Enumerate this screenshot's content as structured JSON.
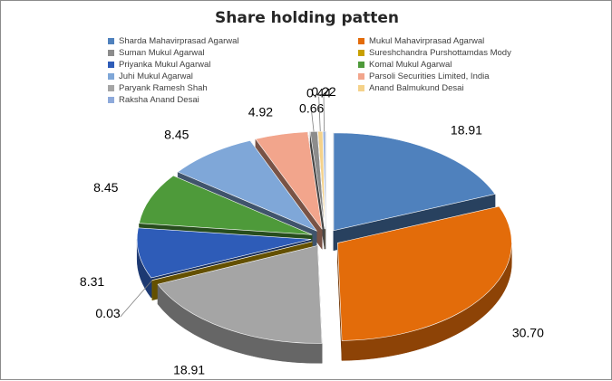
{
  "chart_data": {
    "type": "pie",
    "title": "Share holding patten",
    "legend_position": "top",
    "three_d": true,
    "exploded": true,
    "slices": [
      {
        "label": "Sharda Mahavirprasad Agarwal",
        "value": 18.91,
        "value_label": "18.91",
        "color": "#4f81bd"
      },
      {
        "label": "Mukul Mahavirprasad Agarwal",
        "value": 30.7,
        "value_label": "30.70",
        "color": "#e36c0a"
      },
      {
        "label": "Paryank Ramesh Shah",
        "value": 18.91,
        "value_label": "18.91",
        "color": "#a5a5a5"
      },
      {
        "label": "Sureshchandra Purshottamdas Mody",
        "value": 0.03,
        "value_label": "0.03",
        "color": "#c8a000"
      },
      {
        "label": "Priyanka Mukul Agarwal",
        "value": 8.31,
        "value_label": "8.31",
        "color": "#2e5cb8"
      },
      {
        "label": "Komal Mukul Agarwal",
        "value": 8.45,
        "value_label": "8.45",
        "color": "#4e9a3a"
      },
      {
        "label": "Juhi Mukul Agarwal",
        "value": 8.45,
        "value_label": "8.45",
        "color": "#7fa7d8"
      },
      {
        "label": "Parsoli Securities Limited, India",
        "value": 4.92,
        "value_label": "4.92",
        "color": "#f2a58c"
      },
      {
        "label": "Suman Mukul Agarwal",
        "value": 0.66,
        "value_label": "0.66",
        "color": "#8c8c8c"
      },
      {
        "label": "Anand Balmukund Desai",
        "value": 0.44,
        "value_label": "0.44",
        "color": "#f5d28a"
      },
      {
        "label": "Raksha Anand Desai",
        "value": 0.22,
        "value_label": "0.22",
        "color": "#8eaadb"
      }
    ],
    "legend": [
      {
        "label": "Sharda Mahavirprasad Agarwal",
        "color": "#4f81bd"
      },
      {
        "label": "Mukul Mahavirprasad Agarwal",
        "color": "#e36c0a"
      },
      {
        "label": "Suman Mukul Agarwal",
        "color": "#8c8c8c"
      },
      {
        "label": "Sureshchandra Purshottamdas Mody",
        "color": "#c8a000"
      },
      {
        "label": "Priyanka Mukul Agarwal",
        "color": "#2e5cb8"
      },
      {
        "label": "Komal Mukul Agarwal",
        "color": "#4e9a3a"
      },
      {
        "label": "Juhi Mukul Agarwal",
        "color": "#7fa7d8"
      },
      {
        "label": "Parsoli Securities Limited, India",
        "color": "#f2a58c"
      },
      {
        "label": "Paryank Ramesh Shah",
        "color": "#a5a5a5"
      },
      {
        "label": "Anand Balmukund Desai",
        "color": "#f5d28a"
      },
      {
        "label": "Raksha Anand Desai",
        "color": "#8eaadb"
      }
    ]
  }
}
